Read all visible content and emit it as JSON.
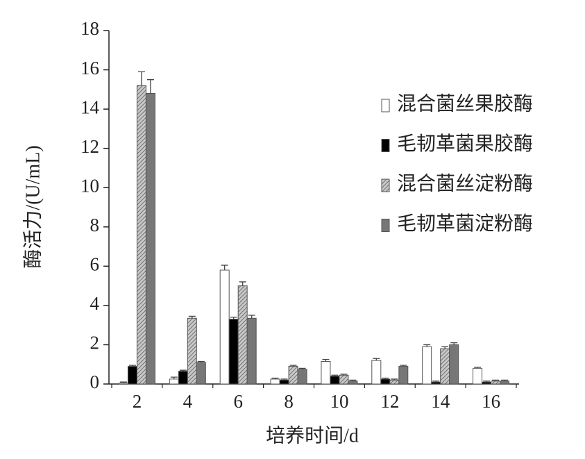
{
  "chart_data": {
    "type": "bar",
    "xlabel": "培养时间/d",
    "ylabel": "酶活力/(U/mL)",
    "categories": [
      "2",
      "4",
      "6",
      "8",
      "10",
      "12",
      "14",
      "16"
    ],
    "ylim": [
      0,
      18
    ],
    "yticks": [
      0,
      2,
      4,
      6,
      8,
      10,
      12,
      14,
      16,
      18
    ],
    "legend": "upper right",
    "series": [
      {
        "name": "混合菌丝果胶酶",
        "color": "#ffffff",
        "values": [
          0.05,
          0.25,
          5.8,
          0.25,
          1.15,
          1.2,
          1.9,
          0.8
        ],
        "errors": [
          0.05,
          0.1,
          0.25,
          0.05,
          0.1,
          0.1,
          0.1,
          0.05
        ]
      },
      {
        "name": "毛韧革菌果胶酶",
        "color": "#000000",
        "values": [
          0.9,
          0.65,
          3.3,
          0.2,
          0.4,
          0.25,
          0.1,
          0.1
        ],
        "errors": [
          0.05,
          0.05,
          0.1,
          0.05,
          0.05,
          0.05,
          0.05,
          0.05
        ]
      },
      {
        "name": "混合菌丝淀粉酶",
        "color": "#b0b0b0",
        "hatch": true,
        "values": [
          15.2,
          3.35,
          5.0,
          0.9,
          0.45,
          0.2,
          1.8,
          0.15
        ],
        "errors": [
          0.7,
          0.1,
          0.2,
          0.05,
          0.05,
          0.05,
          0.1,
          0.05
        ]
      },
      {
        "name": "毛韧革菌淀粉酶",
        "color": "#777777",
        "values": [
          14.8,
          1.1,
          3.35,
          0.75,
          0.15,
          0.9,
          2.0,
          0.15
        ],
        "errors": [
          0.7,
          0.05,
          0.15,
          0.05,
          0.05,
          0.05,
          0.1,
          0.05
        ]
      }
    ]
  }
}
